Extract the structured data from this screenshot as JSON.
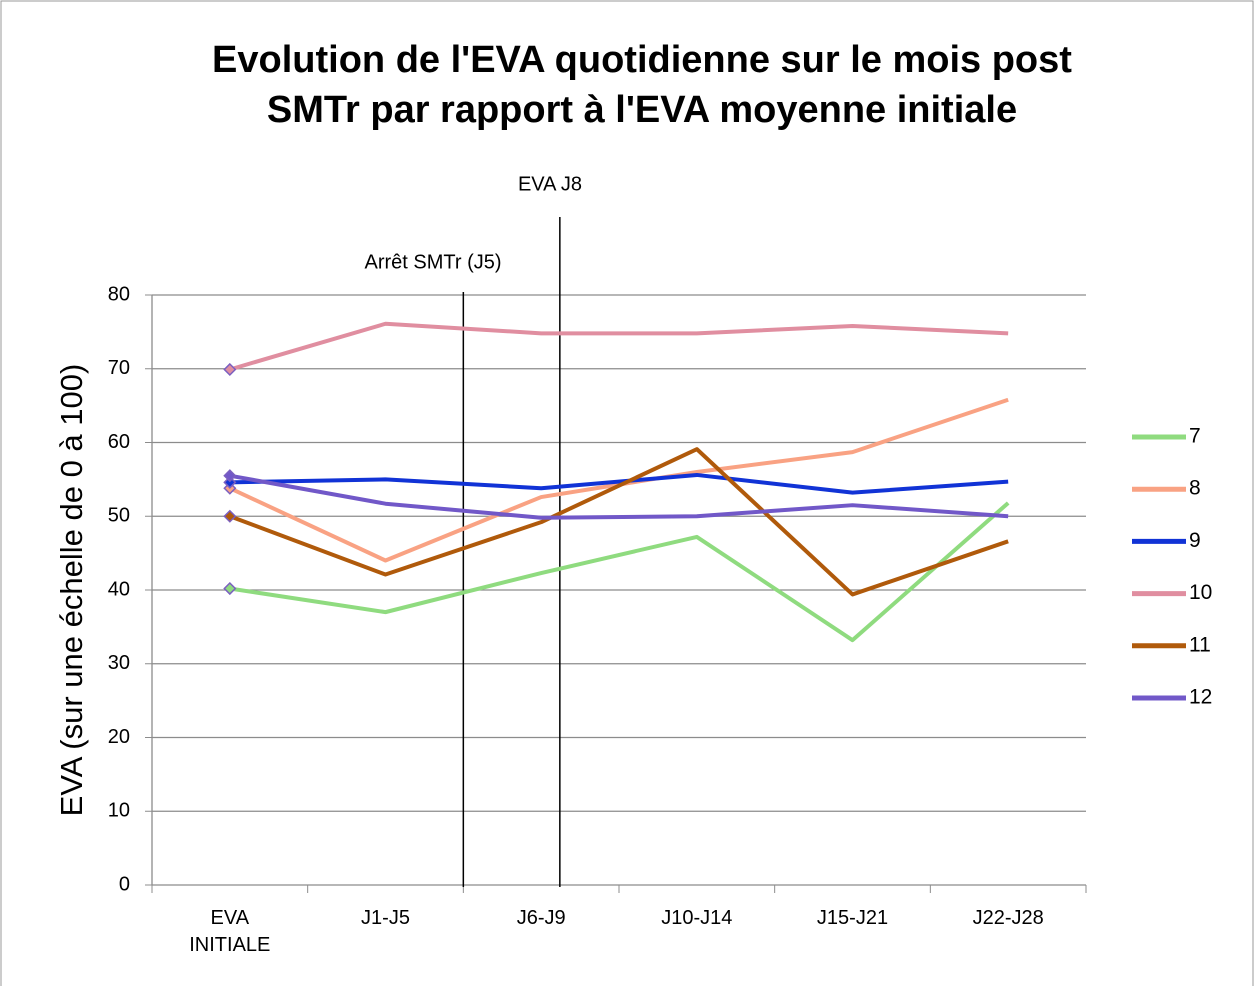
{
  "chart_data": {
    "type": "line",
    "title": [
      "Evolution de l'EVA quotidienne sur le mois post",
      "SMTr par rapport à l'EVA moyenne initiale"
    ],
    "y_label": "EVA (sur une échelle de 0 à 100)",
    "categories": [
      "EVA INITIALE",
      "J1-J5",
      "J6-J9",
      "J10-J14",
      "J15-J21",
      "J22-J28"
    ],
    "series": [
      {
        "name": "7",
        "color": "#8fdb7f",
        "values": [
          40.2,
          37,
          42.3,
          47.2,
          33.2,
          51.8
        ]
      },
      {
        "name": "8",
        "color": "#f9a283",
        "values": [
          53.8,
          44,
          52.6,
          56,
          58.7,
          65.8
        ]
      },
      {
        "name": "9",
        "color": "#1133d6",
        "values": [
          54.6,
          55,
          53.8,
          55.6,
          53.2,
          54.7
        ]
      },
      {
        "name": "10",
        "color": "#e08ea0",
        "values": [
          69.9,
          76.1,
          74.8,
          74.8,
          75.8,
          74.8
        ]
      },
      {
        "name": "11",
        "color": "#b05a0b",
        "values": [
          50,
          42.1,
          49.2,
          59.1,
          39.4,
          46.6
        ]
      },
      {
        "name": "12",
        "color": "#7158c8",
        "values": [
          55.5,
          51.7,
          49.8,
          50,
          51.5,
          50
        ]
      }
    ],
    "annotations": [
      "Arrêt SMTr (J5)",
      "EVA J8"
    ],
    "ylim": [
      0,
      80
    ],
    "yticks": [
      0,
      10,
      20,
      30,
      40,
      50,
      60,
      70,
      80
    ],
    "grid": true,
    "legend": "right",
    "first_point_marker": true
  }
}
